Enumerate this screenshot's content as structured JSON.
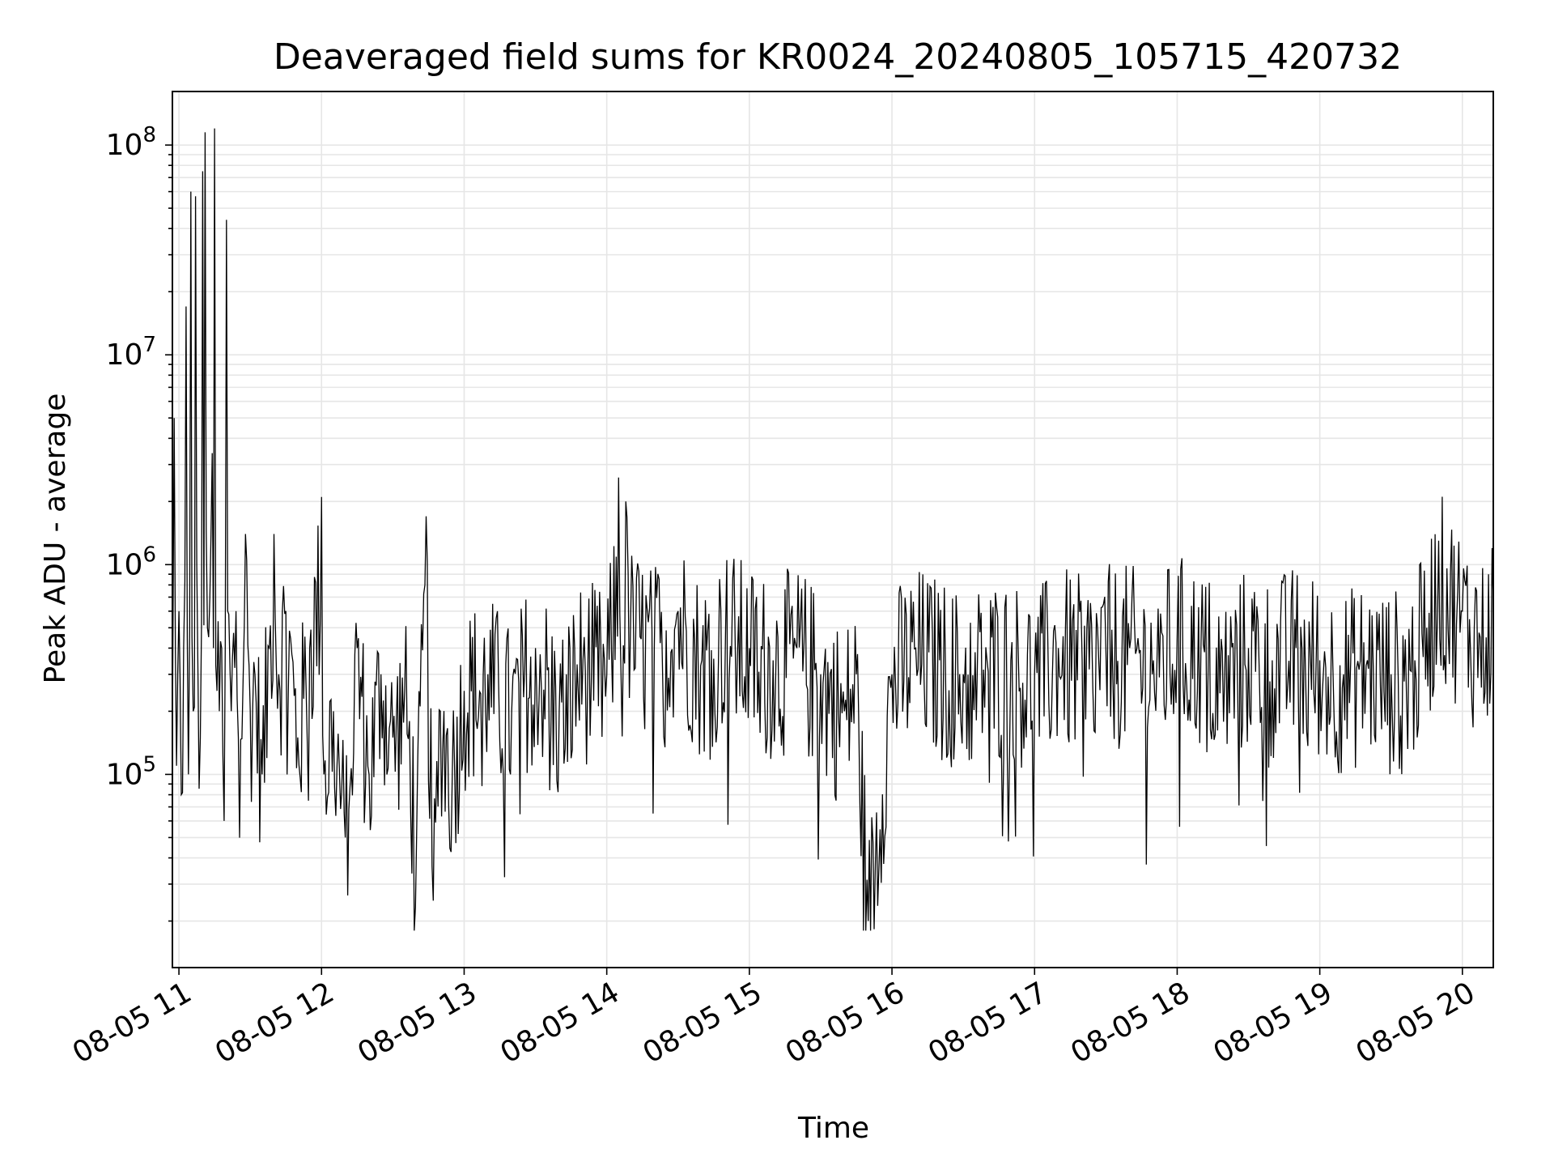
{
  "chart_data": {
    "type": "line",
    "title": "Deaveraged field sums for KR0024_20240805_105715_420732",
    "xlabel": "Time",
    "ylabel": "Peak ADU - average",
    "yscale": "log",
    "ylim": [
      12000,
      180000000
    ],
    "xlim": [
      "2024-08-05T10:57:15",
      "2024-08-05T20:13:00"
    ],
    "x_ticks": [
      {
        "label": "08-05 11",
        "time": "2024-08-05T11:00:00"
      },
      {
        "label": "08-05 12",
        "time": "2024-08-05T12:00:00"
      },
      {
        "label": "08-05 13",
        "time": "2024-08-05T13:00:00"
      },
      {
        "label": "08-05 14",
        "time": "2024-08-05T14:00:00"
      },
      {
        "label": "08-05 15",
        "time": "2024-08-05T15:00:00"
      },
      {
        "label": "08-05 16",
        "time": "2024-08-05T16:00:00"
      },
      {
        "label": "08-05 17",
        "time": "2024-08-05T17:00:00"
      },
      {
        "label": "08-05 18",
        "time": "2024-08-05T18:00:00"
      },
      {
        "label": "08-05 19",
        "time": "2024-08-05T19:00:00"
      },
      {
        "label": "08-05 20",
        "time": "2024-08-05T20:00:00"
      }
    ],
    "y_ticks": [
      {
        "label_base": "10",
        "label_exp": "5",
        "value": 100000
      },
      {
        "label_base": "10",
        "label_exp": "6",
        "value": 1000000
      },
      {
        "label_base": "10",
        "label_exp": "7",
        "value": 10000000
      },
      {
        "label_base": "10",
        "label_exp": "8",
        "value": 100000000
      }
    ],
    "grid": true,
    "line_color": "#000000",
    "series": [
      {
        "x": [
          "2024-08-05T10:57:15",
          "2024-08-05T10:58:00",
          "2024-08-05T10:59:00",
          "2024-08-05T11:00:00",
          "2024-08-05T11:01:00",
          "2024-08-05T11:02:00",
          "2024-08-05T11:03:00",
          "2024-08-05T11:04:00",
          "2024-08-05T11:05:00",
          "2024-08-05T11:06:00",
          "2024-08-05T11:07:00",
          "2024-08-05T11:08:00",
          "2024-08-05T11:09:00",
          "2024-08-05T11:10:00",
          "2024-08-05T11:11:00",
          "2024-08-05T11:12:00",
          "2024-08-05T11:13:00",
          "2024-08-05T11:14:00",
          "2024-08-05T11:15:00",
          "2024-08-05T11:16:00",
          "2024-08-05T11:17:00",
          "2024-08-05T11:18:00",
          "2024-08-05T11:19:00",
          "2024-08-05T11:20:00",
          "2024-08-05T11:22:00",
          "2024-08-05T11:24:00",
          "2024-08-05T11:25:00",
          "2024-08-05T11:28:00",
          "2024-08-05T11:30:00",
          "2024-08-05T11:32:00",
          "2024-08-05T11:35:00",
          "2024-08-05T11:38:00",
          "2024-08-05T11:40:00",
          "2024-08-05T11:42:00",
          "2024-08-05T11:45:00",
          "2024-08-05T11:50:00",
          "2024-08-05T11:55:00",
          "2024-08-05T12:00:00",
          "2024-08-05T12:01:00",
          "2024-08-05T12:05:00",
          "2024-08-05T12:10:00",
          "2024-08-05T12:15:00",
          "2024-08-05T12:20:00",
          "2024-08-05T12:25:00",
          "2024-08-05T12:30:00",
          "2024-08-05T12:35:00",
          "2024-08-05T12:40:00",
          "2024-08-05T12:44:00",
          "2024-08-05T12:47:00",
          "2024-08-05T12:50:00",
          "2024-08-05T12:55:00",
          "2024-08-05T13:00:00",
          "2024-08-05T13:10:00",
          "2024-08-05T13:20:00",
          "2024-08-05T13:30:00",
          "2024-08-05T13:40:00",
          "2024-08-05T13:50:00",
          "2024-08-05T14:00:00",
          "2024-08-05T14:05:00",
          "2024-08-05T14:06:00",
          "2024-08-05T14:08:00",
          "2024-08-05T14:10:00",
          "2024-08-05T14:20:00",
          "2024-08-05T14:30:00",
          "2024-08-05T14:40:00",
          "2024-08-05T14:50:00",
          "2024-08-05T15:00:00",
          "2024-08-05T15:10:00",
          "2024-08-05T15:20:00",
          "2024-08-05T15:30:00",
          "2024-08-05T15:40:00",
          "2024-08-05T15:45:00",
          "2024-08-05T15:50:00",
          "2024-08-05T16:00:00",
          "2024-08-05T16:10:00",
          "2024-08-05T16:20:00",
          "2024-08-05T16:30:00",
          "2024-08-05T16:40:00",
          "2024-08-05T16:50:00",
          "2024-08-05T17:00:00",
          "2024-08-05T17:10:00",
          "2024-08-05T17:20:00",
          "2024-08-05T17:30:00",
          "2024-08-05T17:40:00",
          "2024-08-05T17:50:00",
          "2024-08-05T18:00:00",
          "2024-08-05T18:10:00",
          "2024-08-05T18:20:00",
          "2024-08-05T18:30:00",
          "2024-08-05T18:40:00",
          "2024-08-05T18:50:00",
          "2024-08-05T19:00:00",
          "2024-08-05T19:10:00",
          "2024-08-05T19:20:00",
          "2024-08-05T19:30:00",
          "2024-08-05T19:40:00",
          "2024-08-05T19:45:00",
          "2024-08-05T19:50:00",
          "2024-08-05T20:00:00",
          "2024-08-05T20:05:00",
          "2024-08-05T20:10:00",
          "2024-08-05T20:13:00"
        ],
        "values": [
          150000,
          5000000,
          110000,
          600000,
          80000,
          400000,
          17000000,
          100000,
          60000000,
          200000,
          57000000,
          300000,
          150000,
          75000000,
          115000000,
          500000,
          700000,
          3400000,
          120000000,
          250000,
          200000,
          400000,
          60000,
          44000000,
          200000,
          600000,
          150000,
          1400000,
          200000,
          300000,
          100000,
          400000,
          1400000,
          300000,
          600000,
          150000,
          400000,
          2100000,
          100000,
          200000,
          50000,
          400000,
          100000,
          300000,
          150000,
          250000,
          50000,
          1700000,
          25000,
          200000,
          100000,
          250000,
          300000,
          200000,
          400000,
          200000,
          350000,
          300000,
          2600000,
          300000,
          2000000,
          500000,
          400000,
          600000,
          350000,
          500000,
          400000,
          350000,
          400000,
          300000,
          200000,
          300000,
          20000,
          300000,
          400000,
          350000,
          300000,
          350000,
          350000,
          300000,
          400000,
          350000,
          400000,
          400000,
          350000,
          450000,
          400000,
          300000,
          400000,
          350000,
          400000,
          350000,
          300000,
          350000,
          300000,
          350000,
          500000,
          1300000,
          600000,
          500000,
          450000,
          650000
        ]
      }
    ]
  }
}
